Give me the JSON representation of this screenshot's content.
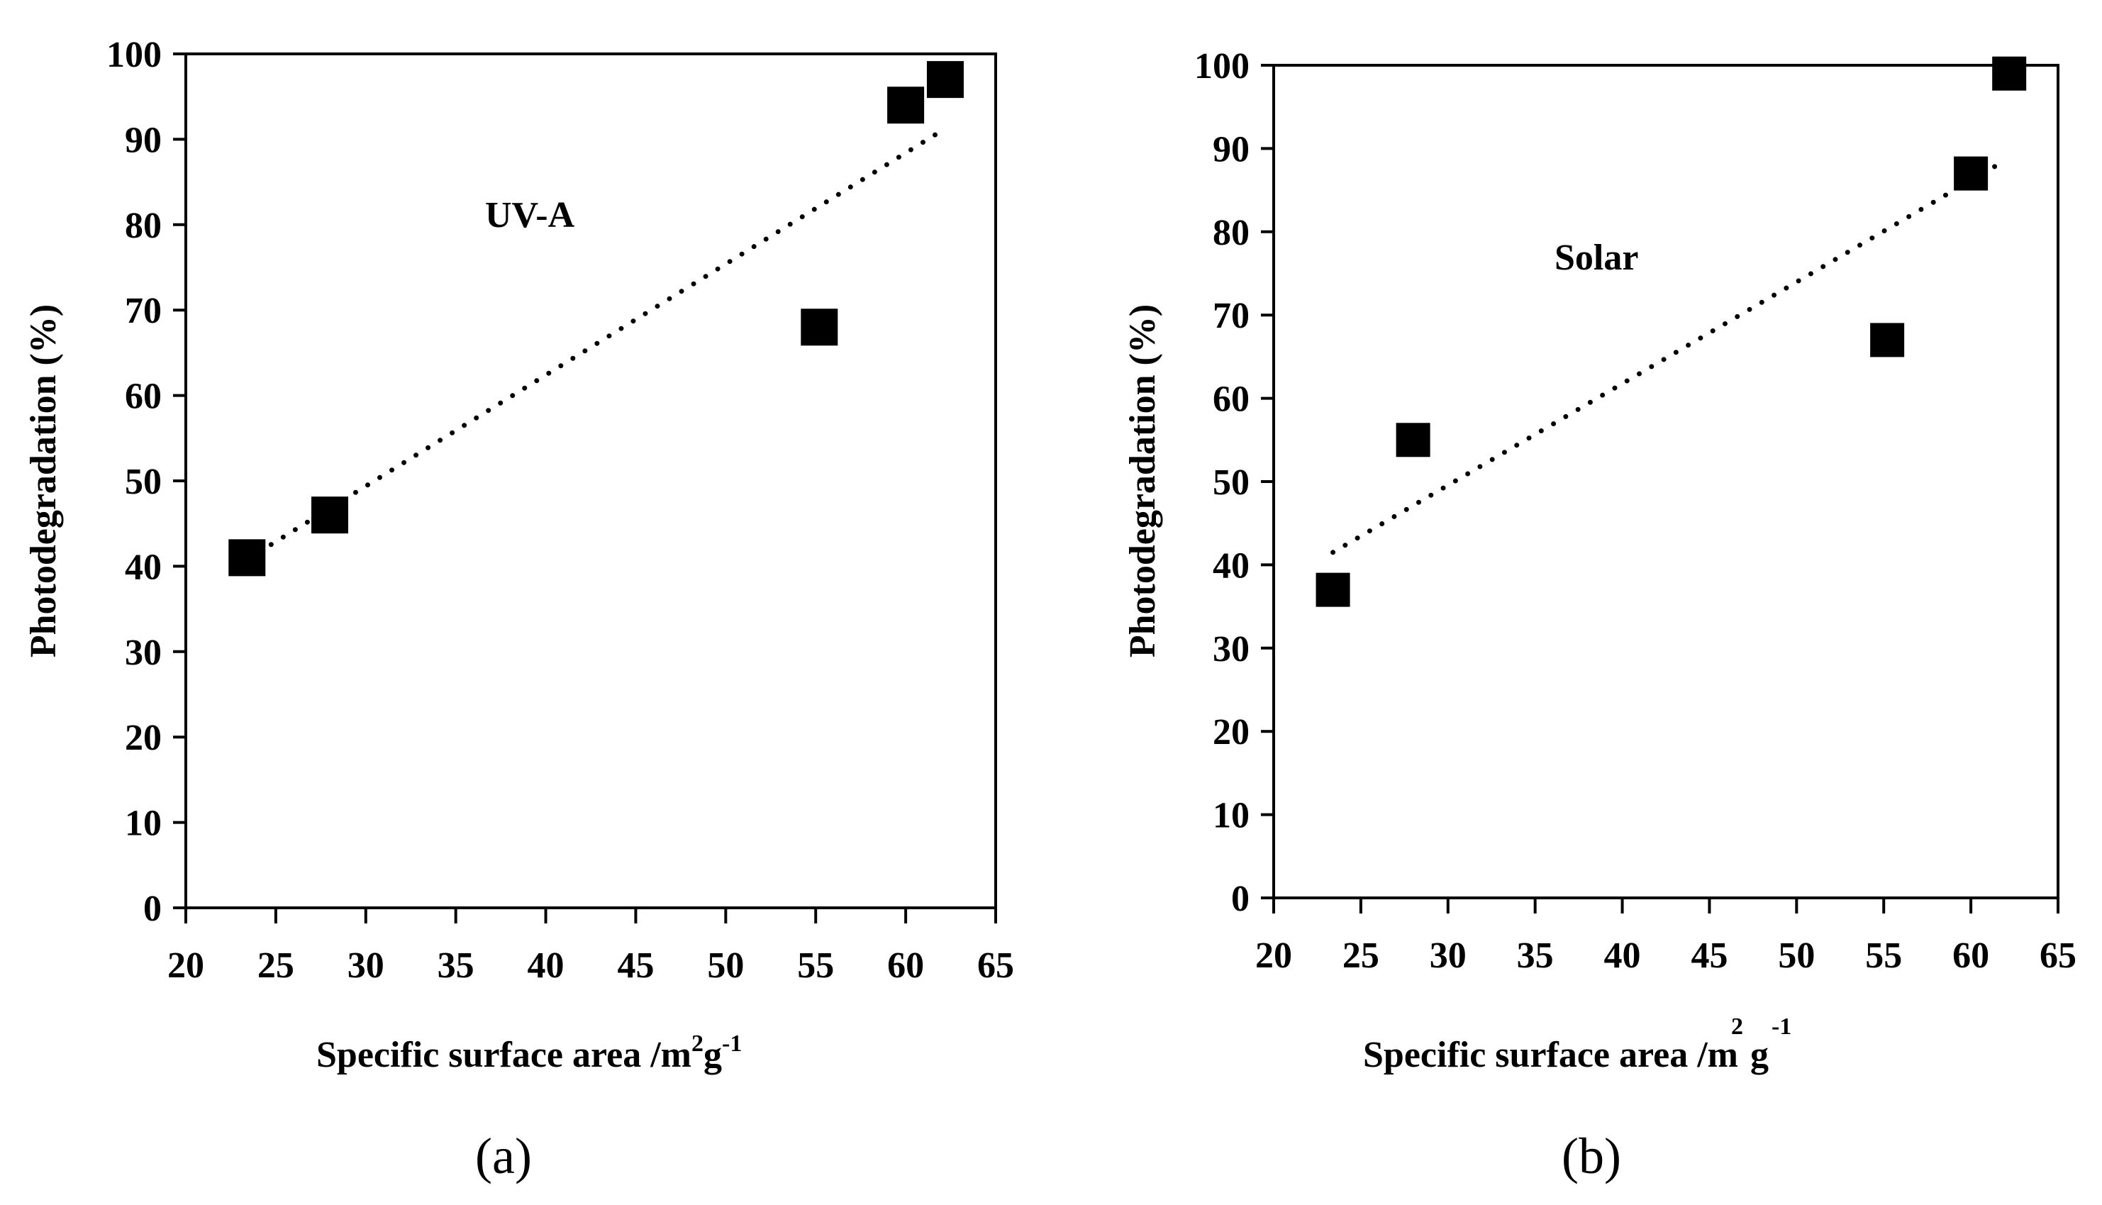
{
  "chart_data": [
    {
      "type": "scatter",
      "panel_label": "(a)",
      "annotation": "UV-A",
      "xlabel": "Specific surface area /m",
      "xlabel_sup1": "2",
      "xlabel_mid": "g",
      "xlabel_sup2": "-1",
      "ylabel": "Photodegradation (%)",
      "xlim": [
        20,
        65
      ],
      "ylim": [
        0,
        100
      ],
      "xticks": [
        20,
        25,
        30,
        35,
        40,
        45,
        50,
        55,
        60,
        65
      ],
      "yticks": [
        0,
        10,
        20,
        30,
        40,
        50,
        60,
        70,
        80,
        90,
        100
      ],
      "series": [
        {
          "name": "UV-A",
          "x": [
            23.4,
            28,
            55.2,
            60,
            62.2
          ],
          "y": [
            41,
            46,
            68,
            94,
            97
          ]
        }
      ],
      "trendline": {
        "style": "dotted",
        "x": [
          23.4,
          62
        ],
        "y": [
          40.8,
          91
        ]
      }
    },
    {
      "type": "scatter",
      "panel_label": "(b)",
      "annotation": "Solar",
      "xlabel": "Specific surface area /m",
      "xlabel_sup1": "2",
      "xlabel_mid": "g",
      "xlabel_sup2": "-1",
      "ylabel": "Photodegradation (%)",
      "xlim": [
        20,
        65
      ],
      "ylim": [
        0,
        100
      ],
      "xticks": [
        20,
        25,
        30,
        35,
        40,
        45,
        50,
        55,
        60,
        65
      ],
      "yticks": [
        0,
        10,
        20,
        30,
        40,
        50,
        60,
        70,
        80,
        90,
        100
      ],
      "series": [
        {
          "name": "Solar",
          "x": [
            23.4,
            28,
            55.2,
            60,
            62.2
          ],
          "y": [
            37,
            55,
            67,
            87,
            99
          ]
        }
      ],
      "trendline": {
        "style": "dotted",
        "x": [
          23.4,
          61.5
        ],
        "y": [
          41.5,
          88
        ]
      }
    }
  ]
}
